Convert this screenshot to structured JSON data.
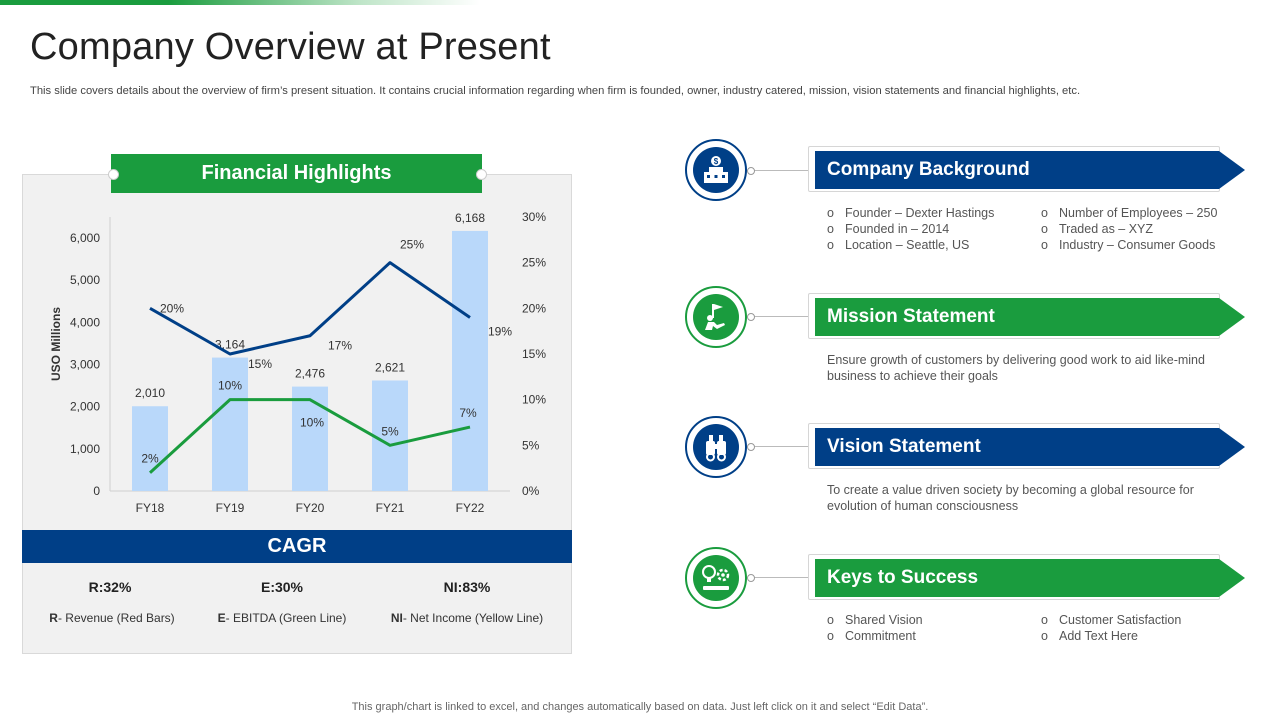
{
  "page": {
    "title": "Company Overview at Present",
    "subtitle": "This slide covers details about the overview of firm’s present situation. It contains crucial information regarding when firm is founded, owner, industry catered, mission, vision statements and financial highlights, etc.",
    "footer": "This graph/chart is linked to excel, and changes automatically based on data. Just left click on it and select “Edit Data”."
  },
  "financial": {
    "banner": "Financial Highlights",
    "cagr_title": "CAGR",
    "cagr": [
      {
        "value": "R:32%",
        "key": "R",
        "desc": "- Revenue (Red Bars)"
      },
      {
        "value": "E:30%",
        "key": "E",
        "desc": "- EBITDA  (Green Line)"
      },
      {
        "value": "NI:83%",
        "key": "NI",
        "desc": "- Net Income (Yellow Line)"
      }
    ]
  },
  "chart_data": {
    "type": "bar",
    "categories": [
      "FY18",
      "FY19",
      "FY20",
      "FY21",
      "FY22"
    ],
    "ylabel": "USO Millions",
    "ylim": [
      0,
      6000
    ],
    "y_ticks": [
      "0",
      "1,000",
      "2,000",
      "3,000",
      "4,000",
      "5,000",
      "6,000"
    ],
    "y2lim": [
      0,
      30
    ],
    "y2_ticks": [
      "0%",
      "5%",
      "10%",
      "15%",
      "20%",
      "25%",
      "30%"
    ],
    "series": [
      {
        "kind": "bar",
        "values": [
          2010,
          3164,
          2476,
          2621,
          6168
        ],
        "labels": [
          "2,010",
          "3,164",
          "2,476",
          "2,621",
          "6,168"
        ],
        "color": "#b9d8fa"
      },
      {
        "kind": "line",
        "axis": "right",
        "values": [
          20,
          15,
          17,
          25,
          19
        ],
        "labels": [
          "20%",
          "15%",
          "17%",
          "25%",
          "19%"
        ],
        "color": "#003f87"
      },
      {
        "kind": "line",
        "axis": "right",
        "values": [
          2,
          10,
          10,
          5,
          7
        ],
        "labels": [
          "2%",
          "10%",
          "10%",
          "5%",
          "7%"
        ],
        "color": "#1a9c3e"
      }
    ],
    "grid": false
  },
  "sections": [
    {
      "title": "Company Background",
      "color": "#003f87",
      "icon": "building-dollar-icon",
      "left_items": [
        "Founder – Dexter Hastings",
        "Founded in – 2014",
        "Location – Seattle, US"
      ],
      "right_items": [
        "Number of Employees – 250",
        "Traded  as – XYZ",
        "Industry – Consumer Goods"
      ]
    },
    {
      "title": "Mission Statement",
      "color": "#1a9c3e",
      "icon": "person-flag-icon",
      "text": "Ensure growth of customers by delivering  good work to aid like-mind business to achieve their goals"
    },
    {
      "title": "Vision Statement",
      "color": "#003f87",
      "icon": "binoculars-icon",
      "text": "To create a value driven  society by becoming a global resource for evolution  of human consciousness"
    },
    {
      "title": "Keys to Success",
      "color": "#1a9c3e",
      "icon": "lightbulb-gear-icon",
      "left_items": [
        "Shared Vision",
        "Commitment"
      ],
      "right_items": [
        "Customer Satisfaction",
        "Add Text Here"
      ]
    }
  ]
}
